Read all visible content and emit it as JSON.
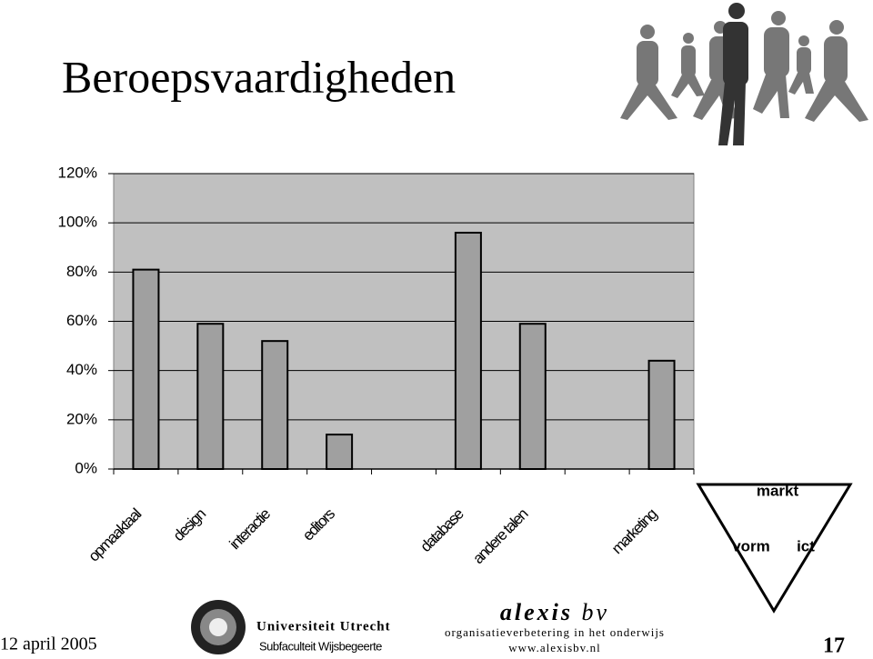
{
  "title": "Beroepsvaardigheden",
  "chart_data": {
    "type": "bar",
    "categories": [
      "opmaaktaal",
      "design",
      "interactie",
      "editors",
      null,
      "database",
      "andere talen",
      null,
      "marketing"
    ],
    "values": [
      81,
      59,
      52,
      14,
      null,
      96,
      59,
      null,
      44
    ],
    "color": "#a0a0a0",
    "ylim": [
      0,
      120
    ],
    "yticks": [
      {
        "value": 0,
        "label": "0%"
      },
      {
        "value": 20,
        "label": "20%"
      },
      {
        "value": 40,
        "label": "40%"
      },
      {
        "value": 60,
        "label": "60%"
      },
      {
        "value": 80,
        "label": "80%"
      },
      {
        "value": 100,
        "label": "100%"
      },
      {
        "value": 120,
        "label": "120%"
      }
    ],
    "grid": true
  },
  "diagram": {
    "labels": [
      "markt",
      "vorm",
      "ict"
    ]
  },
  "footer": {
    "date": "12 april 2005",
    "university": "Universiteit Utrecht",
    "faculty": "Subfaculteit Wijsbegeerte",
    "brand": "alexis",
    "brand_suffix": "bv",
    "tagline": "organisatieverbetering in het onderwijs",
    "url": "www.alexisbv.nl",
    "page": "17"
  }
}
